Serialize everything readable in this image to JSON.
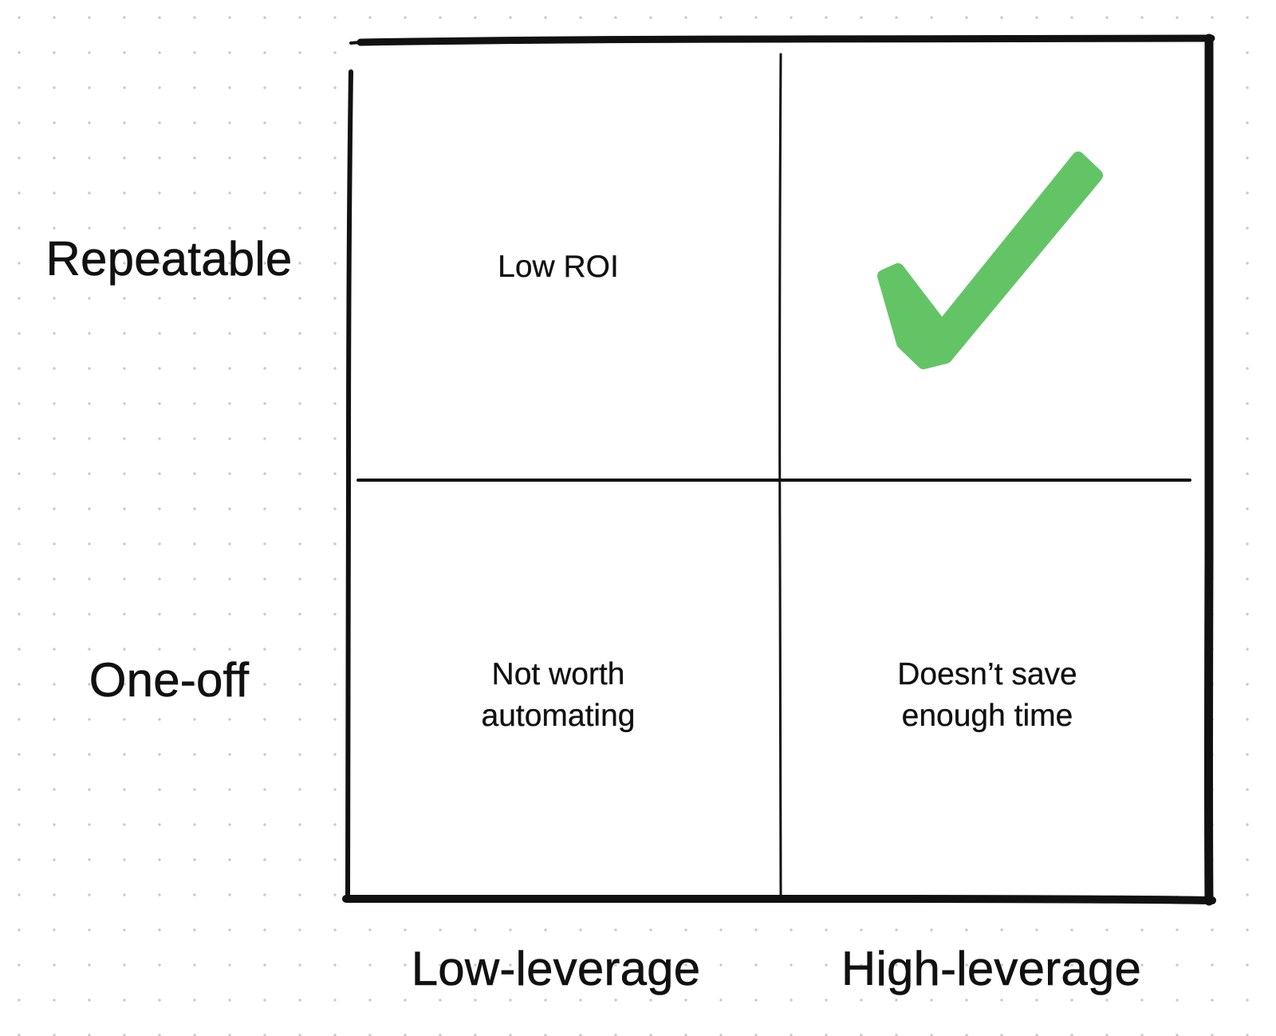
{
  "rows": {
    "top": "Repeatable",
    "bottom": "One-off"
  },
  "columns": {
    "left": "Low-leverage",
    "right": "High-leverage"
  },
  "quadrants": {
    "top_left": {
      "lines": [
        "Low ROI"
      ]
    },
    "top_right": {
      "icon": "checkmark-icon",
      "color": "#63c466"
    },
    "bottom_left": {
      "lines": [
        "Not worth",
        "automating"
      ]
    },
    "bottom_right": {
      "lines": [
        "Doesn’t save",
        "enough time"
      ]
    }
  },
  "colors": {
    "ink": "#111111",
    "check": "#63c466",
    "grid_dots": "#c9c9c9"
  }
}
